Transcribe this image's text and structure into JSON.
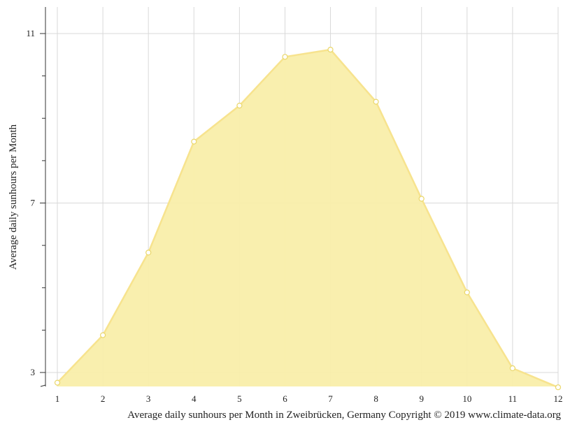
{
  "chart_data": {
    "type": "area",
    "x": [
      1,
      2,
      3,
      4,
      5,
      6,
      7,
      8,
      9,
      10,
      11,
      12
    ],
    "values": [
      2.76,
      3.88,
      5.83,
      8.45,
      9.3,
      10.45,
      10.62,
      9.39,
      7.1,
      4.89,
      3.1,
      2.65
    ],
    "ylabel": "Average daily sunhours per Month",
    "xlabel": "",
    "caption": "Average daily sunhours per Month in Zweibrücken, Germany Copyright © 2019 www.climate-data.org",
    "xlim": [
      1,
      12
    ],
    "ylim": [
      2.65,
      11.6
    ],
    "y_ticks_labeled": [
      3,
      7,
      11
    ],
    "y_minor_step": 1,
    "x_ticks": [
      "1",
      "2",
      "3",
      "4",
      "5",
      "6",
      "7",
      "8",
      "9",
      "10",
      "11",
      "12"
    ],
    "grid": true,
    "colors": {
      "fill": "#f9eeaa",
      "line": "#f7e38e",
      "grid": "#d9d9d9",
      "marker_fill": "#ffffff",
      "marker_stroke": "#ead76a"
    }
  }
}
